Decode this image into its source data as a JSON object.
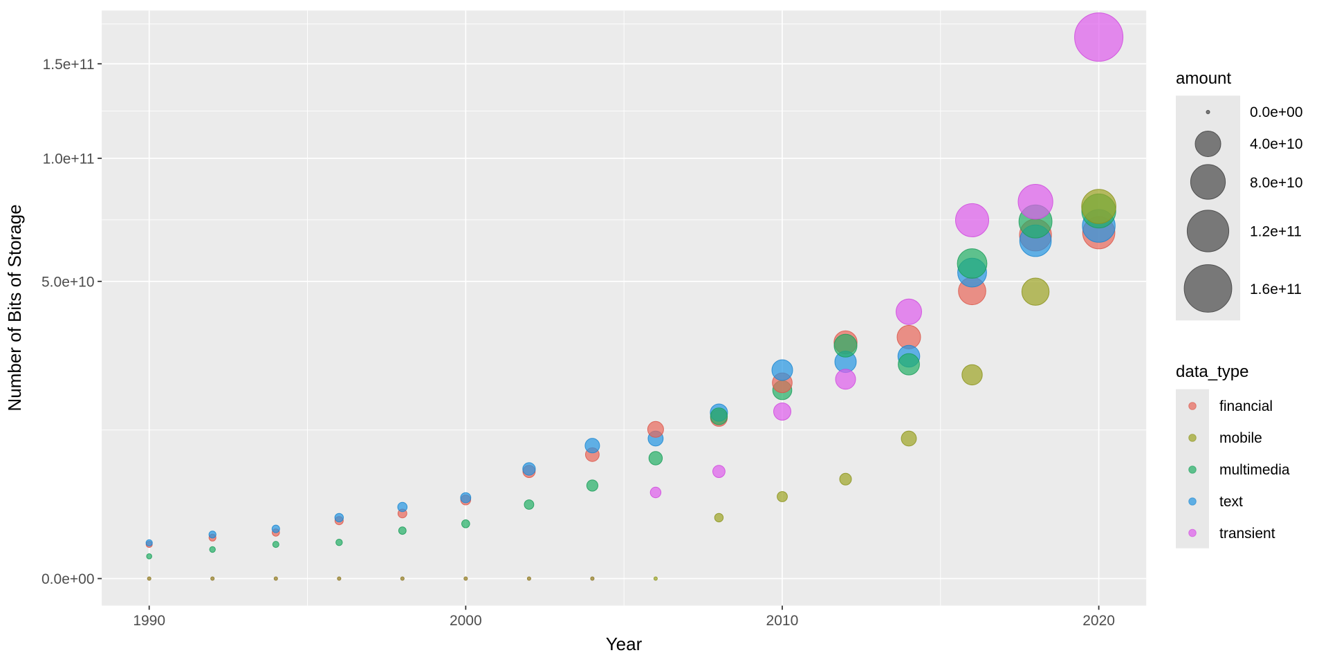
{
  "chart_data": {
    "type": "scatter",
    "subtype": "bubble",
    "title": "",
    "xlabel": "Year",
    "ylabel": "Number of Bits of Storage",
    "y_scale": "sqrt",
    "x_range": [
      1990,
      2020
    ],
    "y_range": [
      0,
      166000000000.0
    ],
    "grid": "on",
    "panel_bg": "#EBEBEB",
    "gridline_color": "#FFFFFF",
    "x_ticks": [
      "1990",
      "2000",
      "2010",
      "2020"
    ],
    "x_minor_ticks": [
      1995,
      2005,
      2015
    ],
    "y_ticks": [
      {
        "value": 0,
        "label": "0.0e+00"
      },
      {
        "value": 50000000000.0,
        "label": "5.0e+10"
      },
      {
        "value": 100000000000.0,
        "label": "1.0e+11"
      },
      {
        "value": 150000000000.0,
        "label": "1.5e+11"
      }
    ],
    "years": [
      1990,
      1992,
      1994,
      1996,
      1998,
      2000,
      2002,
      2004,
      2006,
      2008,
      2010,
      2012,
      2014,
      2016,
      2018,
      2020
    ],
    "size_encodes": "amount (same quantity as y value)",
    "series": [
      {
        "name": "financial",
        "color": "#E8665A",
        "stroke": "#D95548",
        "values": [
          660000000.0,
          950000000.0,
          1200000000.0,
          1900000000.0,
          2400000000.0,
          3500000000.0,
          6500000000.0,
          8700000000.0,
          12600000000.0,
          14600000000.0,
          21700000000.0,
          31600000000.0,
          33000000000.0,
          46800000000.0,
          66800000000.0,
          67700000000.0
        ]
      },
      {
        "name": "mobile",
        "color": "#9CA423",
        "stroke": "#8A921C",
        "values": [
          0,
          0,
          0,
          0,
          0,
          0,
          0,
          0,
          0,
          2100000000.0,
          3800000000.0,
          5600000000.0,
          11100000000.0,
          23500000000.0,
          46600000000.0,
          78400000000.0
        ]
      },
      {
        "name": "multimedia",
        "color": "#22AF65",
        "stroke": "#1B9C59",
        "values": [
          280000000.0,
          480000000.0,
          660000000.0,
          740000000.0,
          1300000000.0,
          1700000000.0,
          3100000000.0,
          4900000000.0,
          8200000000.0,
          14900000000.0,
          20100000000.0,
          30700000000.0,
          26000000000.0,
          56200000000.0,
          72200000000.0,
          76500000000.0
        ]
      },
      {
        "name": "text",
        "color": "#2395E2",
        "stroke": "#1A85CF",
        "values": [
          720000000.0,
          1100000000.0,
          1400000000.0,
          2100000000.0,
          2900000000.0,
          3700000000.0,
          6800000000.0,
          10000000000.0,
          11100000000.0,
          15600000000.0,
          24600000000.0,
          26600000000.0,
          28000000000.0,
          53000000000.0,
          64600000000.0,
          70400000000.0
        ]
      },
      {
        "name": "transient",
        "color": "#DE5CEC",
        "stroke": "#CE48DC",
        "values": [
          0,
          0,
          0,
          0,
          0,
          0,
          0,
          0,
          4200000000.0,
          6500000000.0,
          15800000000.0,
          22500000000.0,
          40300000000.0,
          72700000000.0,
          80400000000.0,
          166000000000.0
        ]
      }
    ]
  },
  "legend_amount": {
    "title": "amount",
    "items": [
      {
        "value": 0,
        "label": "0.0e+00"
      },
      {
        "value": 40000000000.0,
        "label": "4.0e+10"
      },
      {
        "value": 80000000000.0,
        "label": "8.0e+10"
      },
      {
        "value": 120000000000.0,
        "label": "1.2e+11"
      },
      {
        "value": 160000000000.0,
        "label": "1.6e+11"
      }
    ],
    "swatch_fill": "#787878",
    "swatch_stroke": "#4F4F4F"
  },
  "legend_data_type": {
    "title": "data_type",
    "items": [
      {
        "name": "financial",
        "label": "financial"
      },
      {
        "name": "mobile",
        "label": "mobile"
      },
      {
        "name": "multimedia",
        "label": "multimedia"
      },
      {
        "name": "text",
        "label": "text"
      },
      {
        "name": "transient",
        "label": "transient"
      }
    ]
  }
}
